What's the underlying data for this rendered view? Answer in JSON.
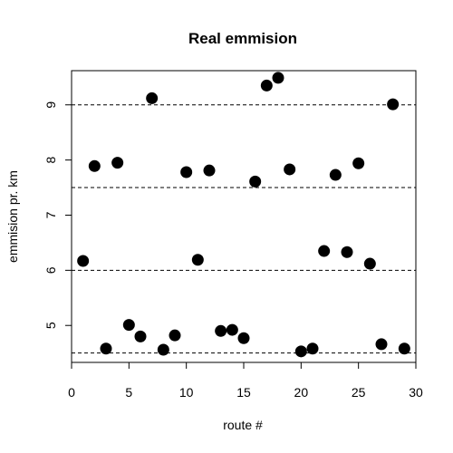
{
  "chart_data": {
    "type": "scatter",
    "title": "Real emmision",
    "xlabel": "route #",
    "ylabel": "emmision pr. km",
    "xlim": [
      0,
      30
    ],
    "ylim": [
      4.33,
      9.62
    ],
    "x_ticks": [
      "0",
      "5",
      "10",
      "15",
      "20",
      "25",
      "30"
    ],
    "y_ticks": [
      "5",
      "6",
      "7",
      "8",
      "9"
    ],
    "reference_lines": [
      4.5,
      6.0,
      7.5,
      9.0
    ],
    "point_color": "#000000",
    "x": [
      1,
      2,
      3,
      4,
      5,
      6,
      7,
      8,
      9,
      10,
      11,
      12,
      13,
      14,
      15,
      16,
      17,
      18,
      19,
      20,
      21,
      22,
      23,
      24,
      25,
      26,
      27,
      28,
      29
    ],
    "y": [
      6.17,
      7.89,
      4.58,
      7.95,
      5.01,
      4.8,
      9.12,
      4.56,
      4.82,
      7.78,
      6.19,
      7.81,
      4.9,
      4.92,
      4.77,
      7.61,
      9.35,
      9.49,
      7.83,
      4.53,
      4.58,
      6.35,
      7.73,
      6.33,
      7.94,
      6.12,
      4.66,
      9.01,
      4.58
    ]
  }
}
